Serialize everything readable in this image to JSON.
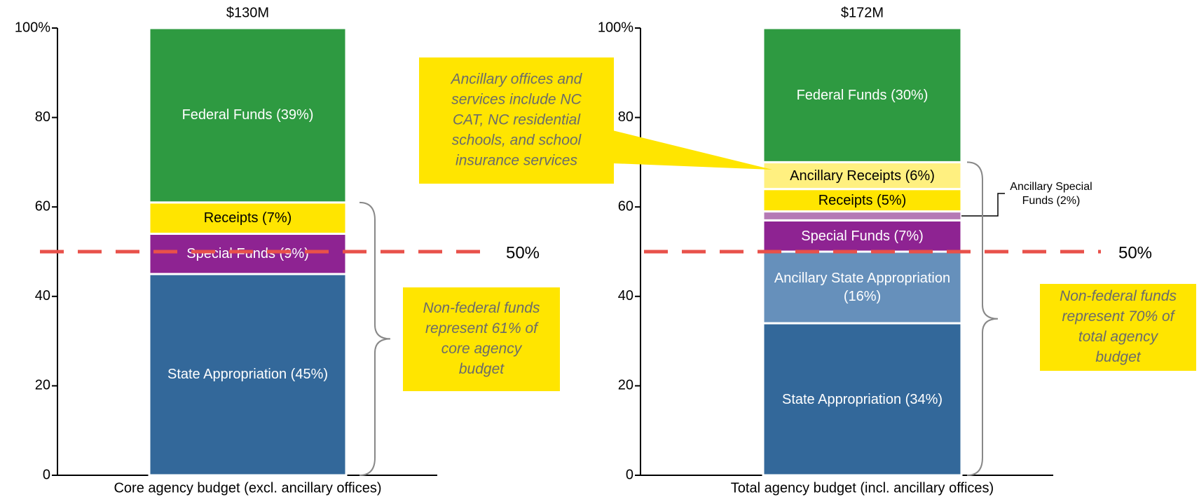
{
  "chart_data": [
    {
      "type": "stacked_bar",
      "total_label": "$130M",
      "x_label": "Core agency budget (excl. ancillary offices)",
      "ylim": [
        0,
        100
      ],
      "yticks": [
        0,
        20,
        40,
        60,
        80,
        {
          "value": 100,
          "label": "100%"
        }
      ],
      "series": [
        {
          "color": "#33689a",
          "values": [
            45
          ],
          "value_labels": [
            "State Appropriation (45%)"
          ],
          "text_color": "#ffffff"
        },
        {
          "color": "#8e2392",
          "values": [
            9
          ],
          "value_labels": [
            "Special Funds (9%)"
          ],
          "text_color": "#ffffff"
        },
        {
          "color": "#ffe500",
          "values": [
            7
          ],
          "value_labels": [
            "Receipts (7%)"
          ],
          "text_color": "#000000"
        },
        {
          "color": "#2e9a41",
          "values": [
            39
          ],
          "value_labels": [
            "Federal Funds (39%)"
          ],
          "text_color": "#ffffff"
        }
      ],
      "reference_line": {
        "value": 50,
        "label": "50%",
        "color": "#e8514a"
      },
      "brace": {
        "from": 0,
        "to": 61
      },
      "callout": {
        "lines": [
          "Non-federal funds",
          "represent 61% of",
          "core agency",
          "budget"
        ]
      }
    },
    {
      "type": "stacked_bar",
      "total_label": "$172M",
      "x_label": "Total agency budget (incl. ancillary offices)",
      "ylim": [
        0,
        100
      ],
      "yticks": [
        0,
        20,
        40,
        60,
        80,
        {
          "value": 100,
          "label": "100%"
        }
      ],
      "series": [
        {
          "color": "#33689a",
          "values": [
            34
          ],
          "value_labels": [
            "State Appropriation (34%)"
          ],
          "text_color": "#ffffff"
        },
        {
          "color": "#6690bb",
          "values": [
            16
          ],
          "value_labels": [
            "Ancillary State Appropriation (16%)"
          ],
          "text_color": "#ffffff"
        },
        {
          "color": "#8e2392",
          "values": [
            7
          ],
          "value_labels": [
            "Special Funds (7%)"
          ],
          "text_color": "#ffffff"
        },
        {
          "color": "#b57ab5",
          "values": [
            2
          ],
          "value_labels": [
            "Ancillary Special Funds (2%)"
          ],
          "text_color": "#000000",
          "label_outside": true
        },
        {
          "color": "#ffe500",
          "values": [
            5
          ],
          "value_labels": [
            "Receipts (5%)"
          ],
          "text_color": "#000000"
        },
        {
          "color": "#fff080",
          "values": [
            6
          ],
          "value_labels": [
            "Ancillary Receipts (6%)"
          ],
          "text_color": "#000000"
        },
        {
          "color": "#2e9a41",
          "values": [
            30
          ],
          "value_labels": [
            "Federal Funds (30%)"
          ],
          "text_color": "#ffffff"
        }
      ],
      "reference_line": {
        "value": 50,
        "label": "50%",
        "color": "#e8514a"
      },
      "brace": {
        "from": 0,
        "to": 70
      },
      "callout": {
        "lines": [
          "Non-federal funds",
          "represent 70% of",
          "total agency",
          "budget"
        ]
      }
    }
  ],
  "note_callout": {
    "lines": [
      "Ancillary offices and",
      "services include NC",
      "CAT, NC residential",
      "schools, and school",
      "insurance services"
    ]
  }
}
